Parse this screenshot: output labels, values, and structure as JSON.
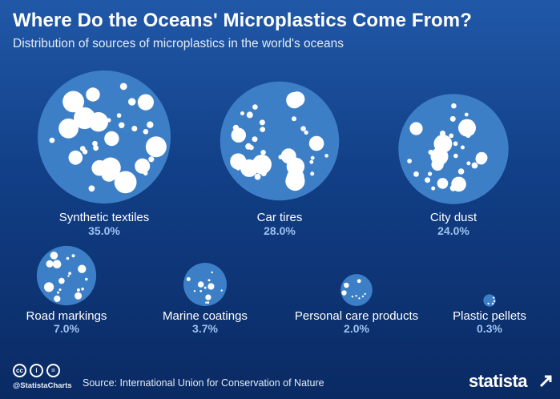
{
  "header": {
    "title": "Where Do the Oceans' Microplastics Come From?",
    "subtitle": "Distribution of sources of microplastics in the world's oceans"
  },
  "chart_data": {
    "type": "bubble",
    "title": "Where Do the Oceans' Microplastics Come From?",
    "subtitle": "Distribution of sources of microplastics in the world's oceans",
    "unit": "%",
    "categories": [
      "Synthetic textiles",
      "Car tires",
      "City dust",
      "Road markings",
      "Marine coatings",
      "Personal care products",
      "Plastic pellets"
    ],
    "values": [
      35.0,
      28.0,
      24.0,
      7.0,
      3.7,
      2.0,
      0.3
    ],
    "value_labels": [
      "35.0%",
      "28.0%",
      "24.0%",
      "7.0%",
      "3.7%",
      "2.0%",
      "0.3%"
    ],
    "layout": "two rows: three bubbles on top, four bubbles below",
    "colors": {
      "bubble": "#3d7fc7",
      "value_label": "#9cc3f0",
      "label": "#ffffff",
      "dots": "#ffffff"
    }
  },
  "footer": {
    "license_icons": [
      "cc-icon",
      "by-icon",
      "equals-icon"
    ],
    "license_glyphs": [
      "cc",
      "i",
      "="
    ],
    "handle": "@StatistaCharts",
    "source": "Source: International Union for Conservation of Nature",
    "brand": "statista"
  },
  "colors": {
    "background_top": "#2058a8",
    "background_bottom": "#0a2a63",
    "text": "#ffffff"
  }
}
